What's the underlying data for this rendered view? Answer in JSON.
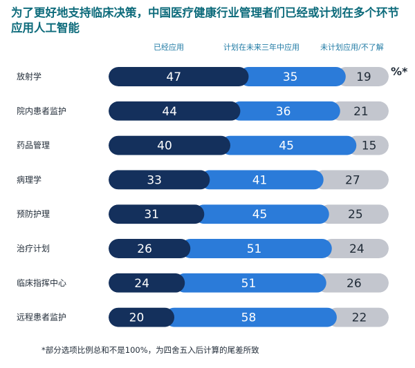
{
  "title": "为了更好地支持临床决策，中国医疗健康行业管理者们已经或计划在多个环节应用人工智能",
  "unit_mark": "%*",
  "footnote": "*部分选项比例总和不是100%，为四舍五入后计算的尾差所致",
  "colors": {
    "series1": "#14305c",
    "series2": "#2b7bd9",
    "series3": "#c3c6ce",
    "title": "#0d6b7b",
    "legend": "#1f7aa4"
  },
  "chart_data": {
    "type": "bar",
    "stacked": true,
    "orientation": "horizontal",
    "title": "为了更好地支持临床决策，中国医疗健康行业管理者们已经或计划在多个环节应用人工智能",
    "categories": [
      "放射学",
      "院内患者监护",
      "药品管理",
      "病理学",
      "预防护理",
      "治疗计划",
      "临床指挥中心",
      "远程患者监护"
    ],
    "series": [
      {
        "name": "已经应用",
        "values": [
          47,
          44,
          40,
          33,
          31,
          26,
          24,
          20
        ]
      },
      {
        "name": "计划在未来三年中应用",
        "values": [
          35,
          36,
          45,
          41,
          45,
          51,
          51,
          58
        ]
      },
      {
        "name": "未计划应用/不了解",
        "values": [
          19,
          21,
          15,
          27,
          25,
          24,
          26,
          22
        ]
      }
    ],
    "legend_position": "top",
    "grid": false
  }
}
